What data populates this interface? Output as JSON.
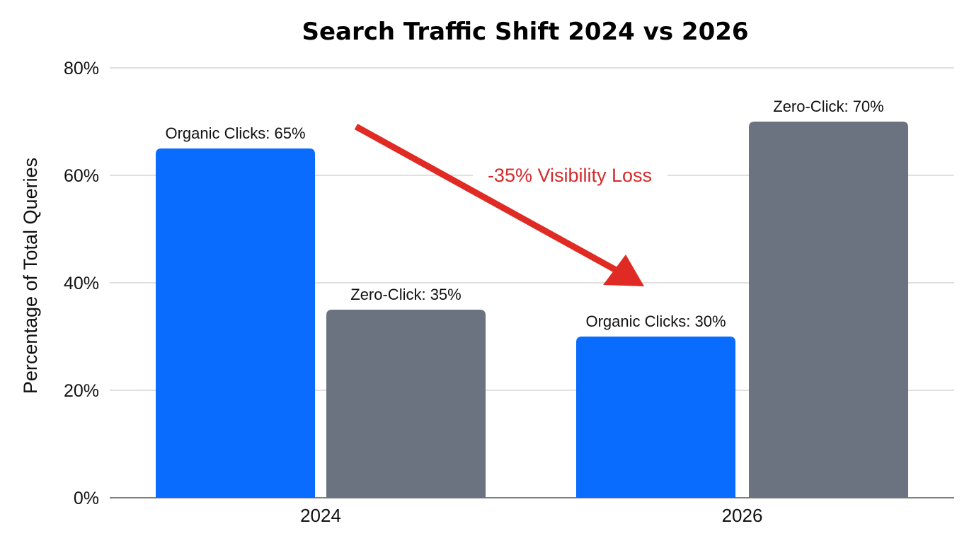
{
  "chart_data": {
    "type": "bar",
    "title": "Search Traffic Shift 2024 vs 2026",
    "xlabel": "",
    "ylabel": "Percentage of Total Queries",
    "ylim": [
      0,
      80
    ],
    "yticks": [
      "0%",
      "20%",
      "40%",
      "60%",
      "80%"
    ],
    "ytick_values": [
      0,
      20,
      40,
      60,
      80
    ],
    "grid": true,
    "categories": [
      "2024",
      "2026"
    ],
    "series": [
      {
        "key": "organic",
        "values": [
          65,
          30
        ],
        "color": "#0a6cff",
        "data_labels": [
          "Organic Clicks: 65%",
          "Organic Clicks: 30%"
        ]
      },
      {
        "key": "zero_click",
        "values": [
          35,
          70
        ],
        "color": "#6b7280",
        "data_labels": [
          "Zero-Click: 35%",
          "Zero-Click: 70%"
        ]
      }
    ],
    "annotation": {
      "text": "-35% Visibility Loss",
      "color": "#d42a2a",
      "arrow_color": "#e02a24"
    }
  }
}
